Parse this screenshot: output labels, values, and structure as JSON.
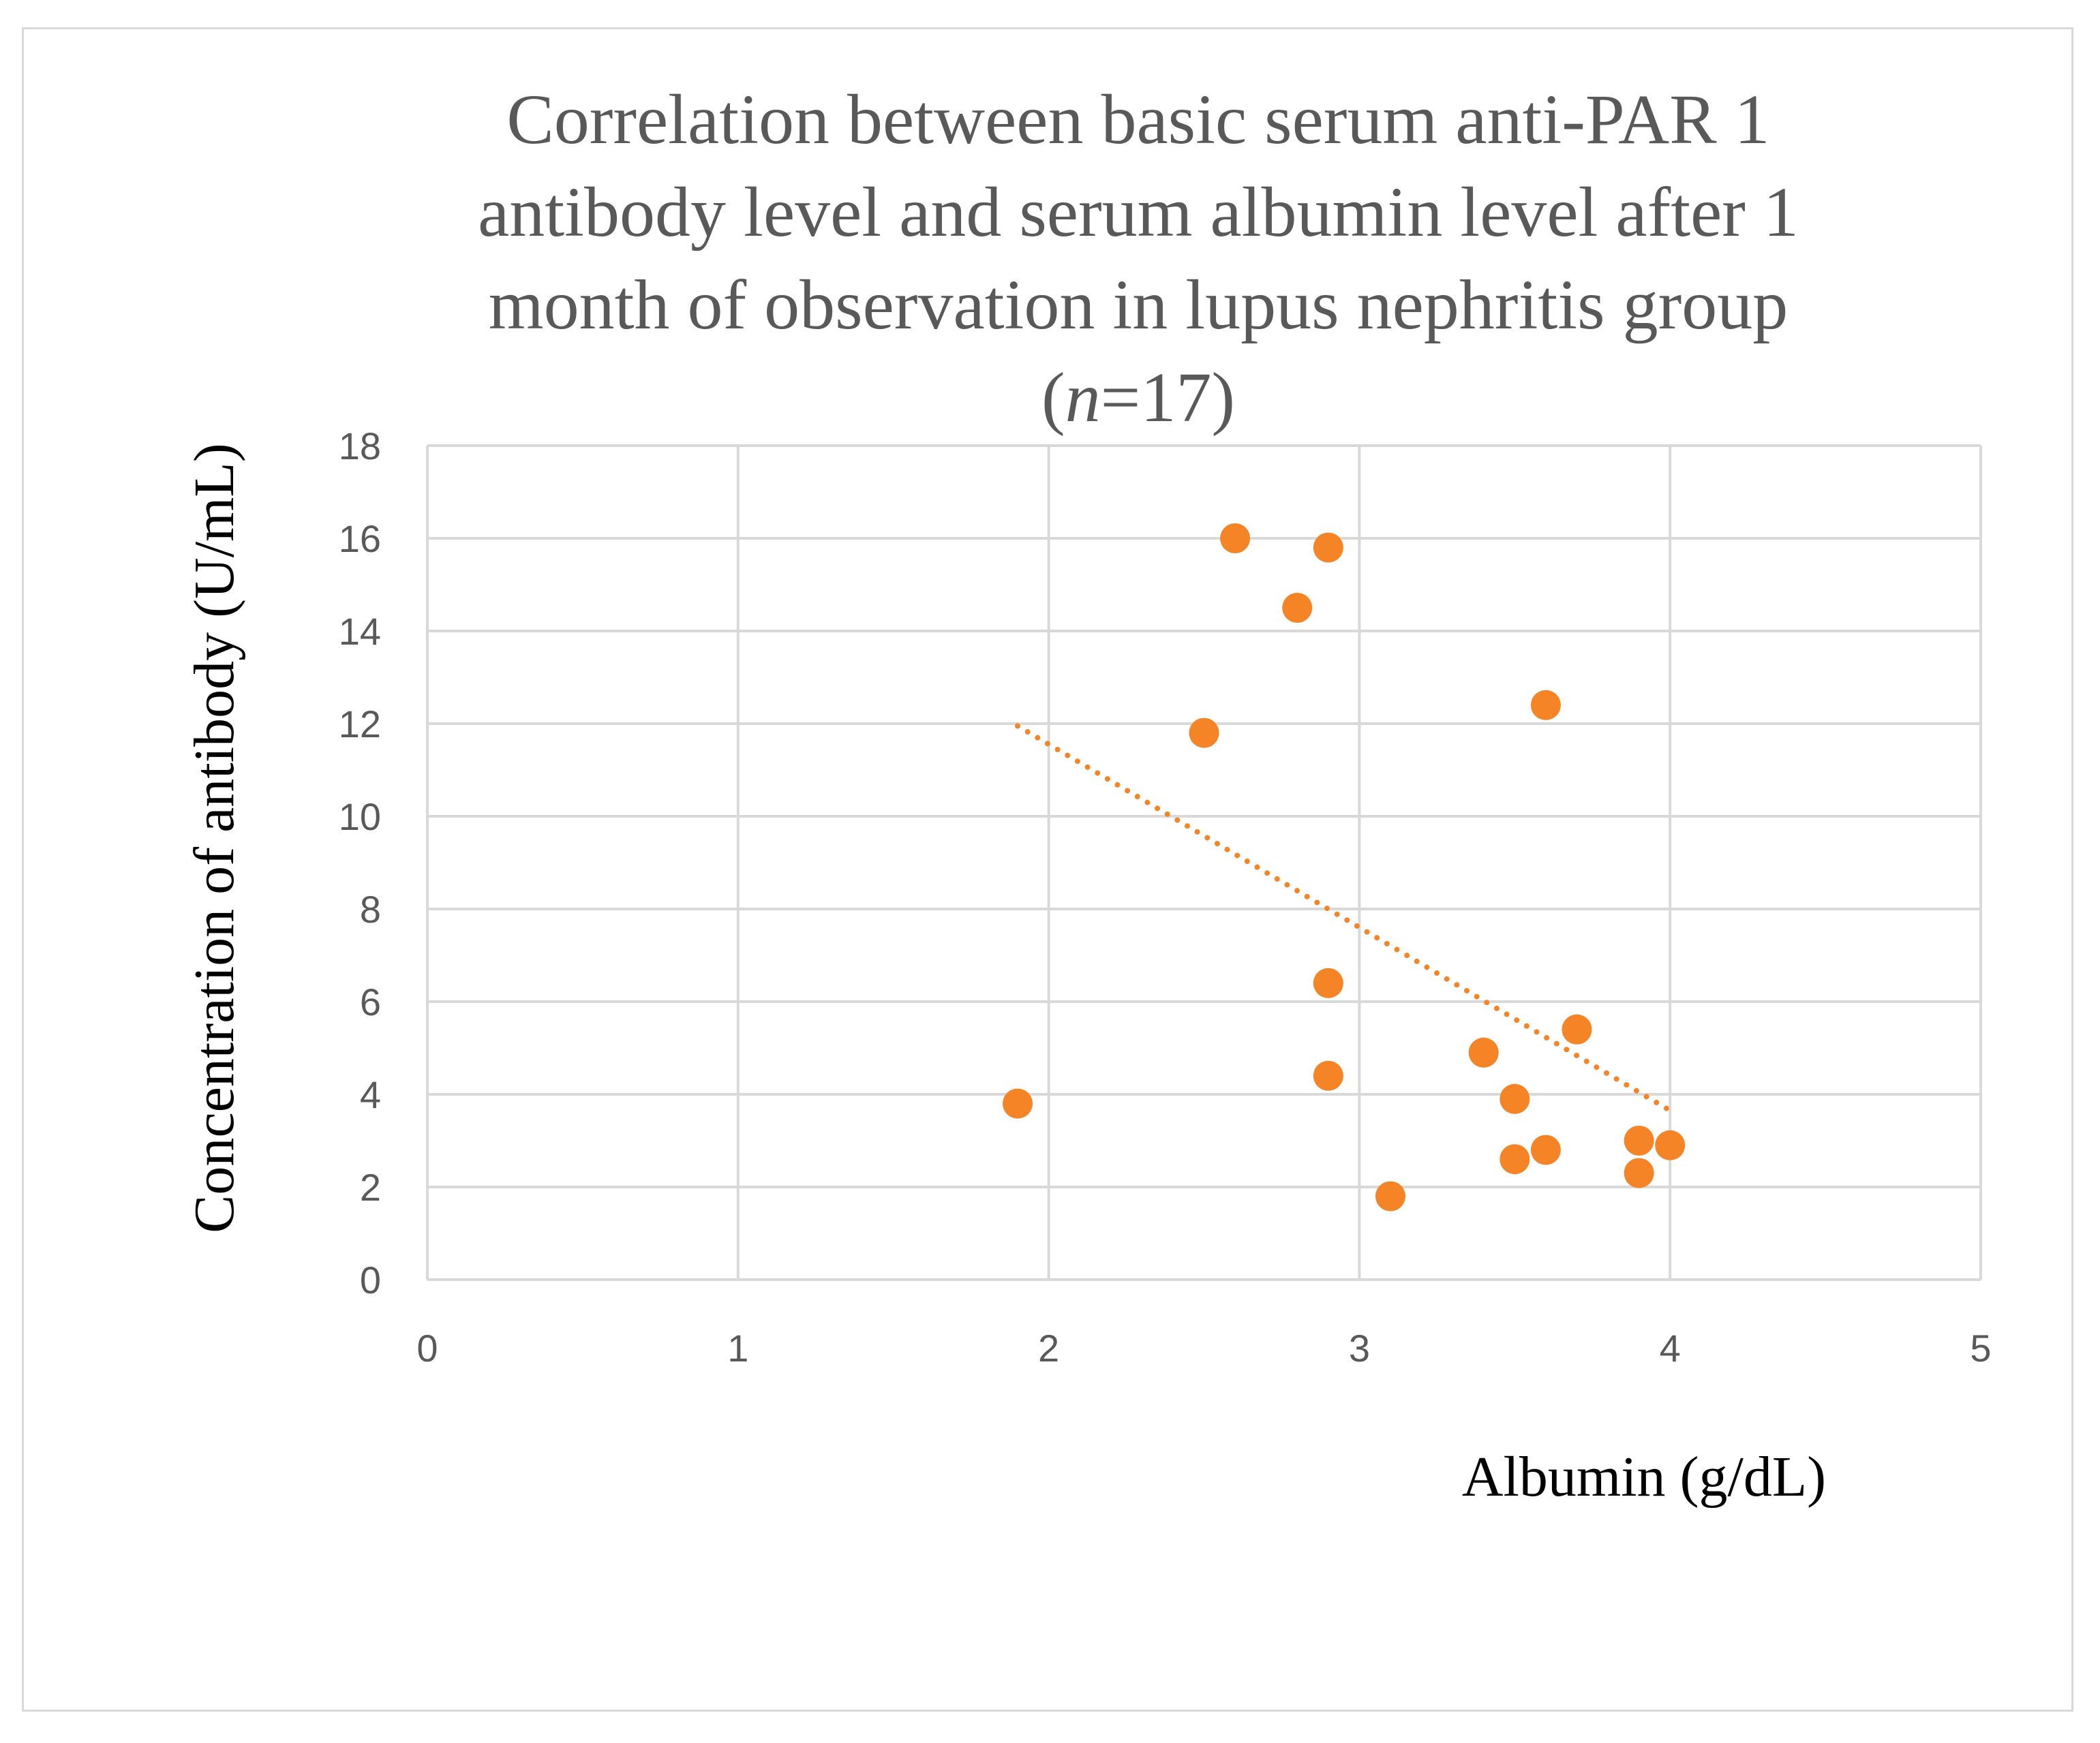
{
  "chart_data": {
    "type": "scatter",
    "title_lines": [
      "Correlation between basic serum anti-PAR 1",
      "antibody level and serum albumin level  after 1",
      "month of observation in lupus nephritis group"
    ],
    "title_n_open": "(",
    "title_n_italic": "n",
    "title_n_rest": "=17)",
    "xlabel": "Albumin (g/dL)",
    "ylabel": "Concentration of antibody (U/mL)",
    "xlim": [
      0,
      5
    ],
    "ylim": [
      0,
      18
    ],
    "x_ticks": [
      0,
      1,
      2,
      3,
      4,
      5
    ],
    "y_ticks": [
      0,
      2,
      4,
      6,
      8,
      10,
      12,
      14,
      16,
      18
    ],
    "grid": true,
    "series": [
      {
        "name": "Anti-PAR 1 antibody",
        "color": "#f58426",
        "points": [
          {
            "x": 1.9,
            "y": 3.8
          },
          {
            "x": 2.5,
            "y": 11.8
          },
          {
            "x": 2.6,
            "y": 16.0
          },
          {
            "x": 2.8,
            "y": 14.5
          },
          {
            "x": 2.9,
            "y": 15.8
          },
          {
            "x": 2.9,
            "y": 6.4
          },
          {
            "x": 2.9,
            "y": 4.4
          },
          {
            "x": 3.1,
            "y": 1.8
          },
          {
            "x": 3.4,
            "y": 4.9
          },
          {
            "x": 3.5,
            "y": 3.9
          },
          {
            "x": 3.5,
            "y": 2.6
          },
          {
            "x": 3.6,
            "y": 12.4
          },
          {
            "x": 3.6,
            "y": 2.8
          },
          {
            "x": 3.7,
            "y": 5.4
          },
          {
            "x": 3.9,
            "y": 3.0
          },
          {
            "x": 3.9,
            "y": 2.3
          },
          {
            "x": 4.0,
            "y": 2.9
          }
        ]
      }
    ],
    "trendline": {
      "type": "linear",
      "style": "dotted",
      "color": "#f58426",
      "from": {
        "x": 1.9,
        "y": 11.95
      },
      "to": {
        "x": 4.0,
        "y": 3.65
      }
    }
  }
}
